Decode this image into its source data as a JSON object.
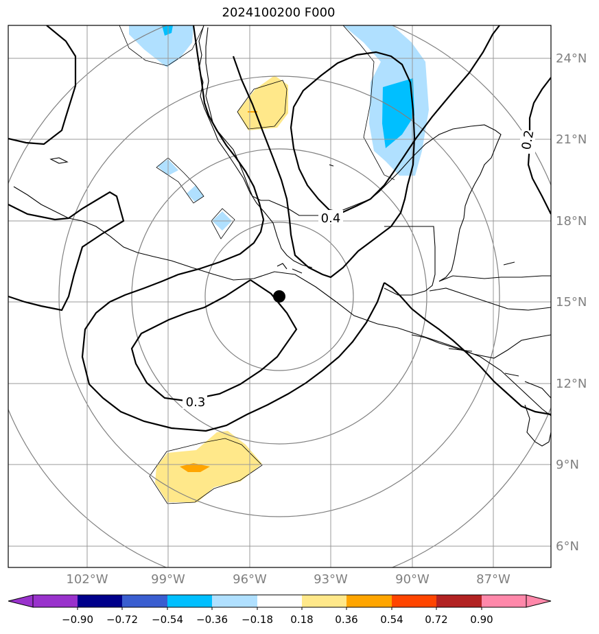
{
  "title": "2024100200 F000",
  "lat_labels": [
    "24°N",
    "21°N",
    "18°N",
    "15°N",
    "12°N",
    "9°N",
    "6°N"
  ],
  "lon_labels": [
    "102°W",
    "99°W",
    "96°W",
    "93°W",
    "90°W",
    "87°W"
  ],
  "contour_labels": [
    "0.4",
    "0.3",
    "0.2"
  ],
  "center_marker": {
    "lat": 15.2,
    "lon": -94.9
  },
  "colorbar": {
    "ticks": [
      "−0.90",
      "−0.72",
      "−0.54",
      "−0.36",
      "−0.18",
      "0.18",
      "0.36",
      "0.54",
      "0.72",
      "0.90"
    ],
    "colors": [
      "#9932CC",
      "#00008B",
      "#3A5ED0",
      "#00BFFF",
      "#B0E0FF",
      "#FFFFFF",
      "#FFE88A",
      "#FFA500",
      "#FF4500",
      "#B22222",
      "#FF88AA"
    ]
  },
  "colors": {
    "grid": "#999999",
    "ring": "#808080",
    "contour": "#000000",
    "coast": "#000000",
    "label_gray": "#808080"
  }
}
